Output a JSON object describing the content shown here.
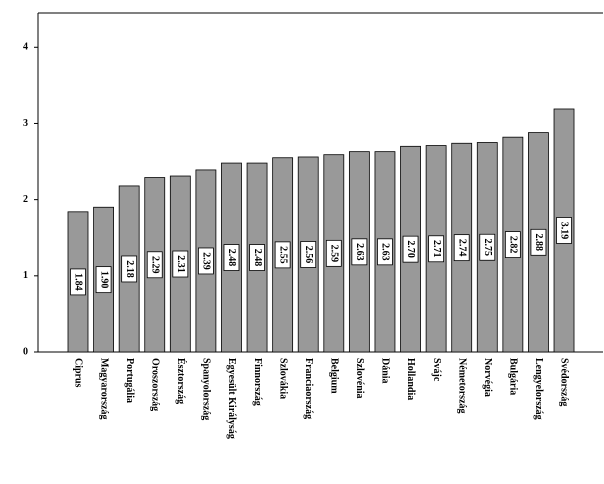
{
  "chart_data": {
    "type": "bar",
    "categories": [
      "Ciprus",
      "Magyarország",
      "Portugália",
      "Oroszország",
      "Észtország",
      "Spanyolország",
      "Egyesült Királyság",
      "Finnország",
      "Szlovákia",
      "Franciaország",
      "Belgium",
      "Szlovénia",
      "Dánia",
      "Hollandia",
      "Svájc",
      "Németország",
      "Norvégia",
      "Bulgária",
      "Lengyelország",
      "Svédország"
    ],
    "values": [
      1.84,
      1.9,
      2.18,
      2.29,
      2.31,
      2.39,
      2.48,
      2.48,
      2.55,
      2.56,
      2.59,
      2.63,
      2.63,
      2.7,
      2.71,
      2.74,
      2.75,
      2.82,
      2.88,
      3.19
    ],
    "value_labels": [
      "1.84",
      "1.90",
      "2.18",
      "2.29",
      "2.31",
      "2.39",
      "2.48",
      "2.48",
      "2.55",
      "2.56",
      "2.59",
      "2.63",
      "2.63",
      "2.70",
      "2.71",
      "2.74",
      "2.75",
      "2.82",
      "2.88",
      "3.19"
    ],
    "color": "#999999",
    "ylim": [
      0,
      4.45
    ],
    "yticks": [
      0,
      1,
      2,
      3,
      4
    ],
    "grid": false
  }
}
